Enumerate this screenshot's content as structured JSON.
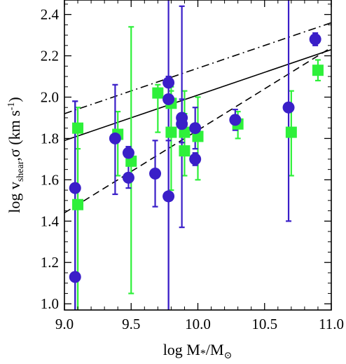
{
  "chart_data": {
    "type": "scatter",
    "xlabel": "log M*/M⊙",
    "ylabel": "log v_shear, σ (km s⁻¹)",
    "xlim": [
      9.0,
      11.0
    ],
    "ylim": [
      0.97,
      2.47
    ],
    "x_ticks": [
      "9.0",
      "9.5",
      "10.0",
      "10.5",
      "11.0"
    ],
    "y_ticks": [
      "1.0",
      "1.2",
      "1.4",
      "1.6",
      "1.8",
      "2.0",
      "2.2",
      "2.4"
    ],
    "grid": false,
    "legend": "none",
    "colors": {
      "circles": "#3a1fc8",
      "squares": "#2ef03a",
      "lines": "#000000"
    },
    "series": [
      {
        "marker": "square",
        "color": "#2ef03a",
        "points": [
          {
            "x": 9.1,
            "y": 1.85,
            "lo": 0.97,
            "hi": 1.95
          },
          {
            "x": 9.1,
            "y": 1.48,
            "lo": 0.97,
            "hi": 1.75
          },
          {
            "x": 9.4,
            "y": 1.82,
            "lo": 1.62,
            "hi": 1.93
          },
          {
            "x": 9.5,
            "y": 1.69,
            "lo": 1.05,
            "hi": 2.34
          },
          {
            "x": 9.7,
            "y": 2.02,
            "lo": 1.83,
            "hi": 2.06
          },
          {
            "x": 9.8,
            "y": 1.83,
            "lo": 1.55,
            "hi": 2.05
          },
          {
            "x": 9.8,
            "y": 1.97,
            "lo": 1.83,
            "hi": 2.03
          },
          {
            "x": 9.9,
            "y": 1.83,
            "lo": 1.75,
            "hi": 1.92
          },
          {
            "x": 9.9,
            "y": 1.74,
            "lo": 1.62,
            "hi": 2.03
          },
          {
            "x": 10.0,
            "y": 1.81,
            "lo": 1.6,
            "hi": 2.0
          },
          {
            "x": 10.3,
            "y": 1.87,
            "lo": 1.8,
            "hi": 1.93
          },
          {
            "x": 10.7,
            "y": 1.83,
            "lo": 1.62,
            "hi": 2.03
          },
          {
            "x": 10.9,
            "y": 2.13,
            "lo": 2.08,
            "hi": 2.18
          }
        ]
      },
      {
        "marker": "circle",
        "color": "#3a1fc8",
        "points": [
          {
            "x": 9.08,
            "y": 1.56,
            "lo": 0.97,
            "hi": 1.98
          },
          {
            "x": 9.08,
            "y": 1.13,
            "lo": 0.97,
            "hi": 1.98
          },
          {
            "x": 9.38,
            "y": 1.8,
            "lo": 1.53,
            "hi": 2.06
          },
          {
            "x": 9.48,
            "y": 1.73,
            "lo": 1.67,
            "hi": 1.76
          },
          {
            "x": 9.48,
            "y": 1.61,
            "lo": 1.56,
            "hi": 1.76
          },
          {
            "x": 9.68,
            "y": 1.63,
            "lo": 1.47,
            "hi": 1.79
          },
          {
            "x": 9.78,
            "y": 2.07,
            "lo": 0.97,
            "hi": 2.47
          },
          {
            "x": 9.78,
            "y": 1.99,
            "lo": 1.84,
            "hi": 2.1
          },
          {
            "x": 9.78,
            "y": 1.52,
            "lo": 0.97,
            "hi": 1.79
          },
          {
            "x": 9.88,
            "y": 1.9,
            "lo": 1.37,
            "hi": 2.44
          },
          {
            "x": 9.88,
            "y": 1.87,
            "lo": 1.78,
            "hi": 1.99
          },
          {
            "x": 9.98,
            "y": 1.85,
            "lo": 1.75,
            "hi": 1.95
          },
          {
            "x": 9.98,
            "y": 1.7,
            "lo": 1.67,
            "hi": 1.73
          },
          {
            "x": 10.28,
            "y": 1.89,
            "lo": 1.84,
            "hi": 1.94
          },
          {
            "x": 10.68,
            "y": 1.95,
            "lo": 1.4,
            "hi": 2.47
          },
          {
            "x": 10.88,
            "y": 2.28,
            "lo": 2.25,
            "hi": 2.31
          }
        ]
      }
    ],
    "lines": [
      {
        "style": "solid",
        "x": [
          9.0,
          11.0
        ],
        "y": [
          1.79,
          2.23
        ]
      },
      {
        "style": "dashed",
        "x": [
          9.0,
          11.0
        ],
        "y": [
          1.44,
          2.24
        ]
      },
      {
        "style": "dash-dot",
        "x": [
          9.0,
          11.0
        ],
        "y": [
          1.92,
          2.36
        ]
      }
    ]
  }
}
